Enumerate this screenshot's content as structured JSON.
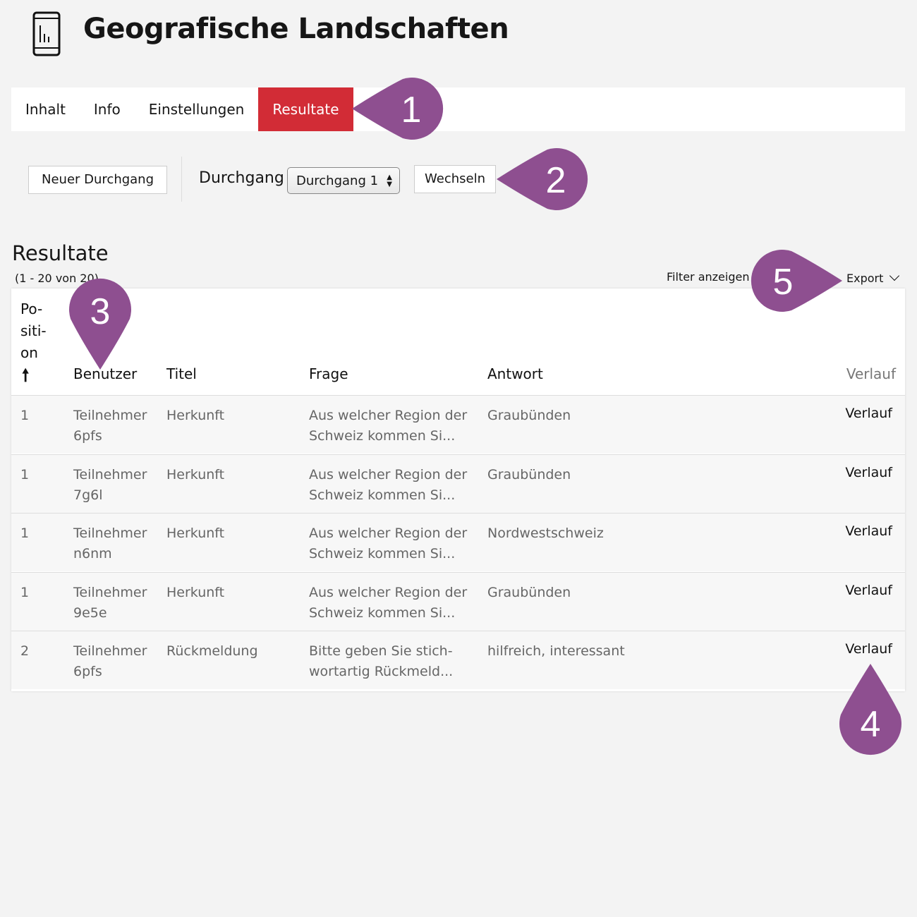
{
  "header": {
    "title": "Geografische Landschaften",
    "icon": "phone-chart-icon"
  },
  "tabs": [
    {
      "label": "Inhalt"
    },
    {
      "label": "Info"
    },
    {
      "label": "Einstellungen"
    },
    {
      "label": "Resultate",
      "active": true
    }
  ],
  "toolbar": {
    "new_run": "Neuer Durchgang",
    "run_label": "Durchgang",
    "run_select": "Durchgang 1",
    "switch": "Wechseln"
  },
  "results": {
    "heading": "Resultate",
    "count": "(1 - 20 von 20)",
    "filter": "Filter anzeigen",
    "export": "Export"
  },
  "table": {
    "headers": {
      "position": "Po-\nsiti-\non",
      "user": "Benutzer",
      "title": "Titel",
      "question": "Frage",
      "answer": "Antwort",
      "history": "Verlauf"
    },
    "rows": [
      {
        "position": "1",
        "user": "Teilnehmer 6pfs",
        "title": "Herkunft",
        "question": "Aus welcher Region der Schweiz kommen Si...",
        "answer": "Graubünden",
        "history": "Verlauf"
      },
      {
        "position": "1",
        "user": "Teilnehmer 7g6l",
        "title": "Herkunft",
        "question": "Aus welcher Region der Schweiz kommen Si...",
        "answer": "Graubünden",
        "history": "Verlauf"
      },
      {
        "position": "1",
        "user": "Teilnehmer n6nm",
        "title": "Herkunft",
        "question": "Aus welcher Region der Schweiz kommen Si...",
        "answer": "Nordwestschweiz",
        "history": "Verlauf"
      },
      {
        "position": "1",
        "user": "Teilnehmer 9e5e",
        "title": "Herkunft",
        "question": "Aus welcher Region der Schweiz kommen Si...",
        "answer": "Graubünden",
        "history": "Verlauf"
      },
      {
        "position": "2",
        "user": "Teilnehmer 6pfs",
        "title": "Rückmeldung",
        "question": "Bitte geben Sie stich-wortartig Rückmeld...",
        "answer": "hilfreich, interessant",
        "history": "Verlauf"
      }
    ]
  },
  "markers": [
    {
      "label": "1"
    },
    {
      "label": "2"
    },
    {
      "label": "3"
    },
    {
      "label": "4"
    },
    {
      "label": "5"
    }
  ],
  "colors": {
    "accent": "#d22c36",
    "marker": "#8e4f90"
  }
}
